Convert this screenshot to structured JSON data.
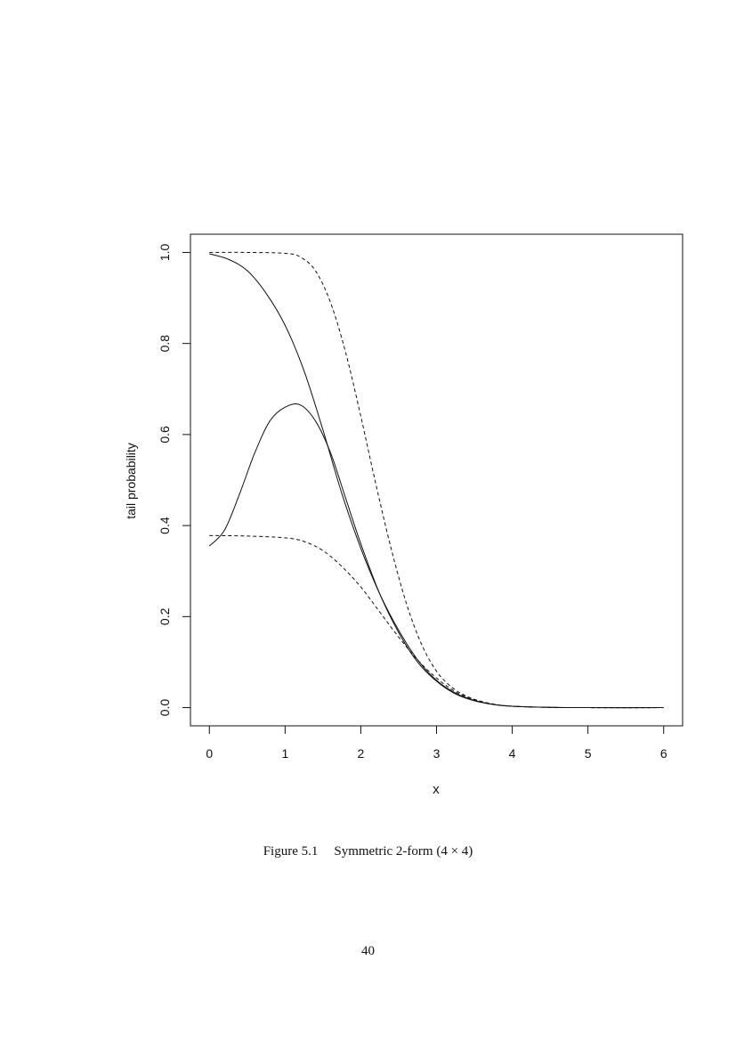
{
  "chart_data": {
    "type": "line",
    "xlabel": "x",
    "ylabel": "tail probability",
    "xlim": [
      -0.25,
      6.25
    ],
    "ylim": [
      -0.04,
      1.04
    ],
    "x_ticks": [
      0,
      1,
      2,
      3,
      4,
      5,
      6
    ],
    "x_tick_labels": [
      "0",
      "1",
      "2",
      "3",
      "4",
      "5",
      "6"
    ],
    "y_ticks": [
      0.0,
      0.2,
      0.4,
      0.6,
      0.8,
      1.0
    ],
    "y_tick_labels": [
      "0.0",
      "0.2",
      "0.4",
      "0.6",
      "0.8",
      "1.0"
    ],
    "grid": false,
    "legend": "none",
    "series": [
      {
        "line_style": "dashed",
        "x": [
          0.0,
          0.5,
          1.0,
          1.2,
          1.4,
          1.6,
          1.8,
          2.0,
          2.2,
          2.4,
          2.6,
          2.8,
          3.0,
          3.2,
          3.4,
          3.6,
          3.8,
          4.0,
          4.5,
          5.0,
          6.0
        ],
        "y": [
          1.0,
          1.0,
          0.998,
          0.99,
          0.96,
          0.89,
          0.78,
          0.64,
          0.49,
          0.35,
          0.23,
          0.14,
          0.08,
          0.045,
          0.025,
          0.013,
          0.006,
          0.003,
          0.0005,
          0.0,
          0.0
        ]
      },
      {
        "line_style": "solid",
        "x": [
          0.0,
          0.25,
          0.5,
          0.75,
          1.0,
          1.25,
          1.5,
          1.75,
          2.0,
          2.25,
          2.5,
          2.75,
          3.0,
          3.25,
          3.5,
          3.75,
          4.0,
          4.5,
          5.0,
          6.0
        ],
        "y": [
          0.997,
          0.985,
          0.96,
          0.91,
          0.84,
          0.74,
          0.61,
          0.47,
          0.35,
          0.25,
          0.17,
          0.105,
          0.06,
          0.032,
          0.016,
          0.007,
          0.003,
          0.0005,
          0.0,
          0.0
        ]
      },
      {
        "line_style": "solid",
        "x": [
          0.0,
          0.2,
          0.4,
          0.6,
          0.8,
          1.0,
          1.2,
          1.4,
          1.6,
          1.8,
          2.0,
          2.25,
          2.5,
          2.75,
          3.0,
          3.25,
          3.5,
          3.75,
          4.0,
          4.5,
          5.0,
          6.0
        ],
        "y": [
          0.355,
          0.39,
          0.47,
          0.56,
          0.63,
          0.66,
          0.665,
          0.63,
          0.56,
          0.46,
          0.36,
          0.25,
          0.165,
          0.1,
          0.058,
          0.03,
          0.015,
          0.007,
          0.003,
          0.0005,
          0.0,
          0.0
        ]
      },
      {
        "line_style": "dashed",
        "x": [
          0.0,
          0.5,
          1.0,
          1.25,
          1.5,
          1.75,
          2.0,
          2.25,
          2.5,
          2.75,
          3.0,
          3.25,
          3.5,
          3.75,
          4.0,
          4.5,
          5.0,
          6.0
        ],
        "y": [
          0.378,
          0.377,
          0.373,
          0.365,
          0.345,
          0.31,
          0.265,
          0.21,
          0.155,
          0.105,
          0.065,
          0.035,
          0.018,
          0.008,
          0.003,
          0.0005,
          0.0,
          0.0
        ]
      }
    ]
  },
  "caption": {
    "label": "Figure 5.1",
    "text": "Symmetric 2-form  (4 × 4)"
  },
  "page_number": "40"
}
